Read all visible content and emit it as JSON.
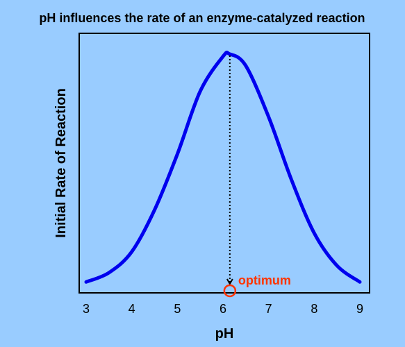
{
  "chart_data": {
    "type": "line",
    "title": "pH influences the rate of an enzyme-catalyzed reaction",
    "xlabel": "pH",
    "ylabel": "Initial Rate of Reaction",
    "xlim": [
      3,
      9
    ],
    "ylim": [
      0,
      1
    ],
    "x_ticks": [
      "3",
      "4",
      "5",
      "6",
      "7",
      "8",
      "9"
    ],
    "series": [
      {
        "x": [
          3.0,
          3.5,
          4.0,
          4.5,
          5.0,
          5.5,
          6.0,
          6.15,
          6.5,
          7.0,
          7.5,
          8.0,
          8.5,
          9.0
        ],
        "y": [
          0.02,
          0.06,
          0.15,
          0.33,
          0.57,
          0.84,
          0.99,
          1.0,
          0.95,
          0.73,
          0.46,
          0.23,
          0.09,
          0.02
        ]
      }
    ],
    "annotation": {
      "label": "optimum",
      "x": 6.15
    },
    "colors": {
      "curve": "#0000ee",
      "annotation": "#ff3300",
      "background": "#99ccff",
      "text": "#000000"
    },
    "grid": false
  }
}
